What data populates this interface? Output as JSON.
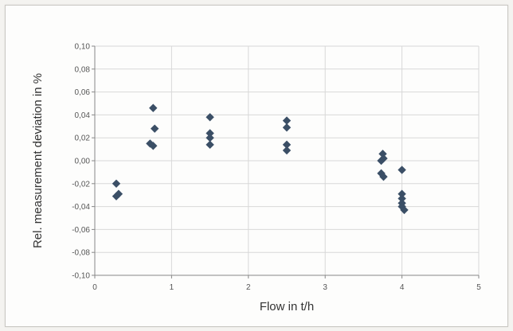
{
  "chart_data": {
    "type": "scatter",
    "title": "",
    "xlabel": "Flow in t/h",
    "ylabel": "Rel. measurement deviation in %",
    "xlim": [
      0,
      5
    ],
    "ylim": [
      -0.1,
      0.1
    ],
    "x_ticks": [
      "0",
      "1",
      "2",
      "3",
      "4",
      "5"
    ],
    "y_ticks": [
      "0,10",
      "0,08",
      "0,06",
      "0,04",
      "0,02",
      "0,00",
      "-0,02",
      "-0,04",
      "-0,06",
      "-0,08",
      "-0,10"
    ],
    "grid": true,
    "legend": "none",
    "marker": "diamond",
    "colors": {
      "marker": "#3b4f66",
      "grid": "#d8d8d8",
      "axis": "#888888"
    },
    "series": [
      {
        "points": [
          {
            "x": 0.28,
            "y": -0.02
          },
          {
            "x": 0.28,
            "y": -0.031
          },
          {
            "x": 0.31,
            "y": -0.029
          },
          {
            "x": 0.72,
            "y": 0.015
          },
          {
            "x": 0.76,
            "y": 0.013
          },
          {
            "x": 0.76,
            "y": 0.046
          },
          {
            "x": 0.78,
            "y": 0.028
          },
          {
            "x": 1.5,
            "y": 0.038
          },
          {
            "x": 1.5,
            "y": 0.024
          },
          {
            "x": 1.5,
            "y": 0.02
          },
          {
            "x": 1.5,
            "y": 0.014
          },
          {
            "x": 2.5,
            "y": 0.035
          },
          {
            "x": 2.5,
            "y": 0.029
          },
          {
            "x": 2.5,
            "y": 0.014
          },
          {
            "x": 2.5,
            "y": 0.009
          },
          {
            "x": 3.73,
            "y": 0.0
          },
          {
            "x": 3.75,
            "y": 0.006
          },
          {
            "x": 3.76,
            "y": 0.002
          },
          {
            "x": 3.73,
            "y": -0.011
          },
          {
            "x": 3.76,
            "y": -0.014
          },
          {
            "x": 4.0,
            "y": -0.008
          },
          {
            "x": 4.0,
            "y": -0.029
          },
          {
            "x": 4.0,
            "y": -0.033
          },
          {
            "x": 4.0,
            "y": -0.037
          },
          {
            "x": 4.0,
            "y": -0.04
          },
          {
            "x": 4.03,
            "y": -0.043
          }
        ]
      }
    ]
  }
}
